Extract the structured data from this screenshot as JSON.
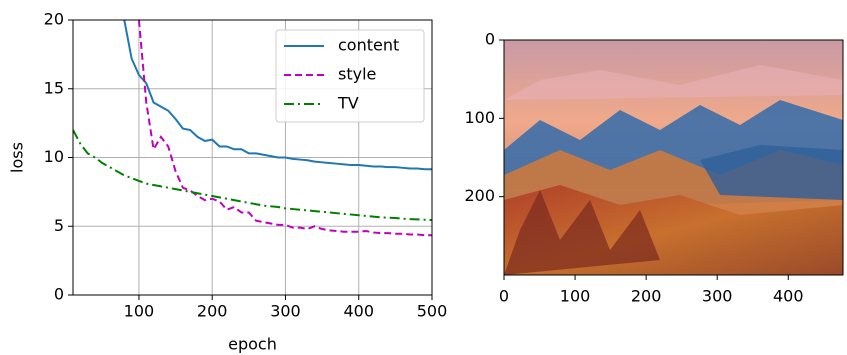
{
  "chart_data": [
    {
      "type": "line",
      "xlabel": "epoch",
      "ylabel": "loss",
      "x": [
        10,
        20,
        30,
        40,
        50,
        60,
        70,
        80,
        90,
        100,
        110,
        120,
        130,
        140,
        150,
        160,
        170,
        180,
        190,
        200,
        210,
        220,
        230,
        240,
        250,
        260,
        270,
        280,
        290,
        300,
        310,
        320,
        330,
        340,
        350,
        360,
        370,
        380,
        390,
        400,
        410,
        420,
        430,
        440,
        450,
        460,
        470,
        480,
        490,
        500
      ],
      "series": [
        {
          "name": "content",
          "color": "#1f77b4",
          "dash": "solid",
          "values": [
            null,
            null,
            null,
            null,
            null,
            null,
            null,
            20,
            17.2,
            16,
            15.4,
            14,
            13.7,
            13.4,
            12.8,
            12.1,
            12,
            11.5,
            11.2,
            11.3,
            10.8,
            10.8,
            10.6,
            10.6,
            10.3,
            10.3,
            10.2,
            10.1,
            10,
            10,
            9.9,
            9.85,
            9.8,
            9.7,
            9.65,
            9.6,
            9.55,
            9.5,
            9.45,
            9.45,
            9.4,
            9.35,
            9.35,
            9.3,
            9.3,
            9.25,
            9.2,
            9.2,
            9.15,
            9.15
          ]
        },
        {
          "name": "style",
          "color": "#bf00bf",
          "dash": "dashed",
          "values": [
            null,
            null,
            null,
            null,
            null,
            null,
            null,
            null,
            null,
            20,
            14,
            10.6,
            11.5,
            10.8,
            9,
            7.8,
            7.6,
            7.2,
            6.9,
            7,
            6.8,
            6.2,
            6.4,
            6,
            6,
            5.4,
            5.3,
            5.2,
            5.1,
            5.1,
            4.9,
            4.9,
            4.8,
            5,
            4.8,
            4.7,
            4.65,
            4.6,
            4.6,
            4.6,
            4.65,
            4.55,
            4.5,
            4.5,
            4.45,
            4.45,
            4.4,
            4.4,
            4.35,
            4.35
          ]
        },
        {
          "name": "TV",
          "color": "#008000",
          "dash": "dashdot",
          "values": [
            12,
            11,
            10.3,
            10,
            9.6,
            9.3,
            9,
            8.7,
            8.5,
            8.3,
            8.1,
            8,
            7.9,
            7.8,
            7.7,
            7.6,
            7.5,
            7.4,
            7.3,
            7.2,
            7.1,
            7,
            6.9,
            6.8,
            6.7,
            6.6,
            6.5,
            6.45,
            6.4,
            6.3,
            6.25,
            6.2,
            6.15,
            6.1,
            6.05,
            6,
            5.95,
            5.9,
            5.85,
            5.8,
            5.75,
            5.7,
            5.65,
            5.62,
            5.6,
            5.55,
            5.52,
            5.5,
            5.47,
            5.45
          ]
        }
      ],
      "xlim": [
        10,
        500
      ],
      "ylim": [
        0,
        20
      ],
      "xticks": [
        100,
        200,
        300,
        400,
        500
      ],
      "yticks": [
        0,
        5,
        10,
        15,
        20
      ],
      "grid": true,
      "legend": "upper right"
    },
    {
      "type": "image",
      "xlim": [
        0,
        477
      ],
      "ylim": [
        300,
        0
      ],
      "xticks": [
        0,
        100,
        200,
        300,
        400
      ],
      "yticks": [
        0,
        100,
        200
      ]
    }
  ]
}
